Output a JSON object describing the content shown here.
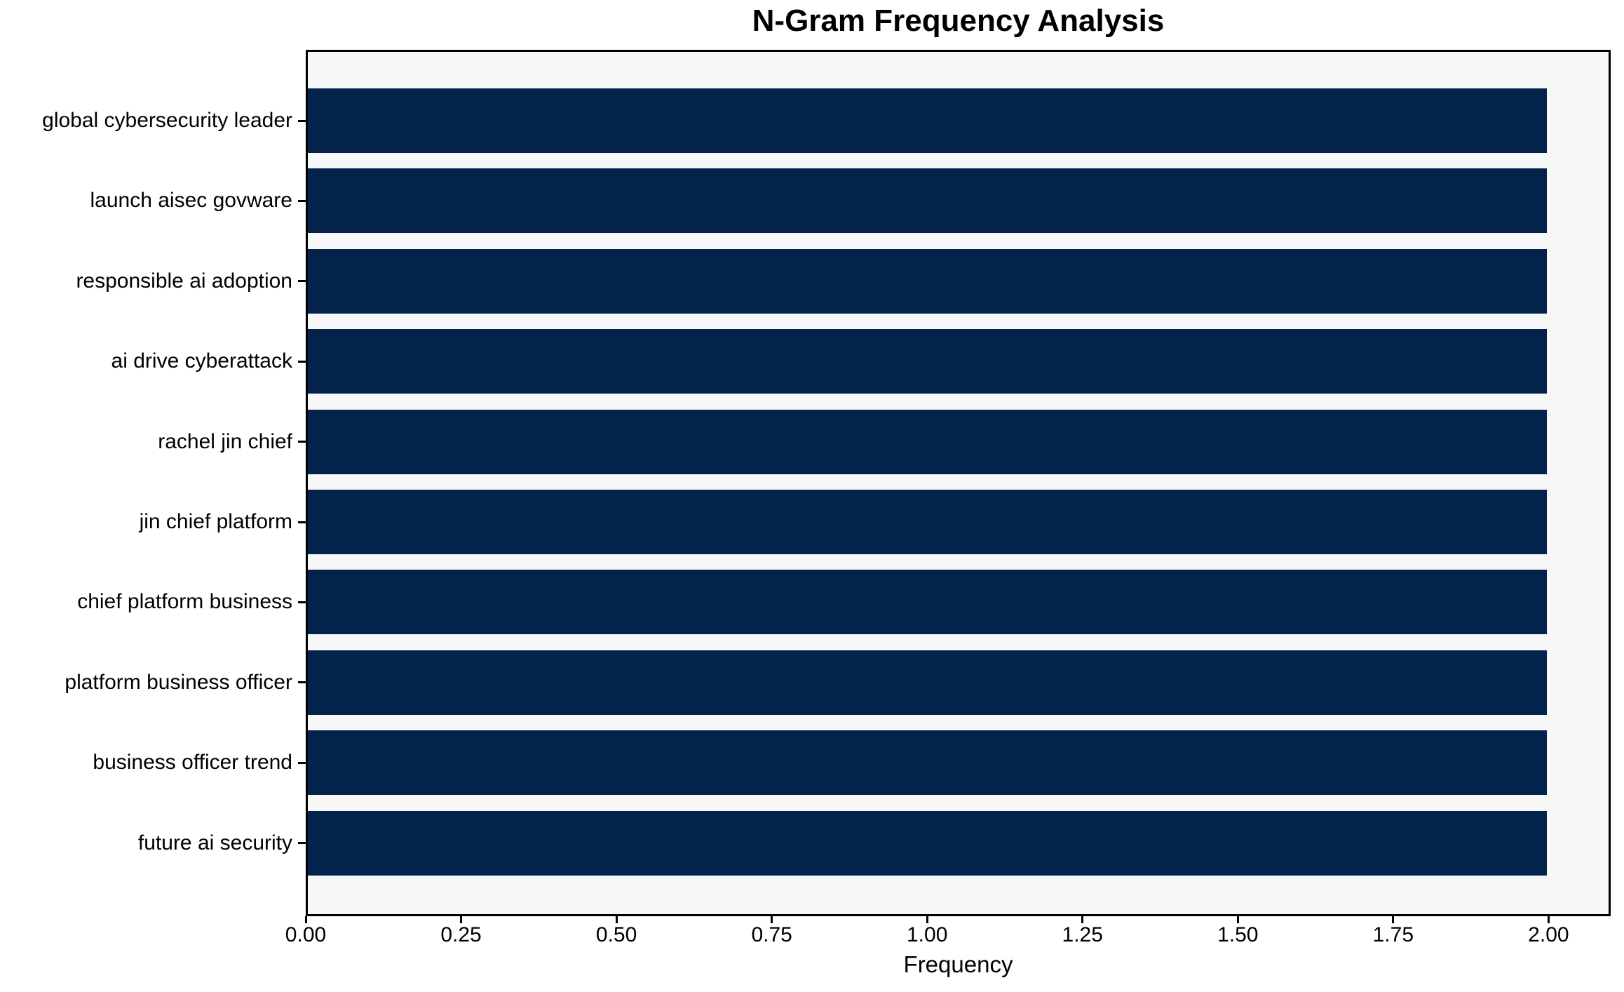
{
  "chart_data": {
    "type": "bar",
    "orientation": "horizontal",
    "title": "N-Gram Frequency Analysis",
    "xlabel": "Frequency",
    "ylabel": "",
    "categories": [
      "global cybersecurity leader",
      "launch aisec govware",
      "responsible ai adoption",
      "ai drive cyberattack",
      "rachel jin chief",
      "jin chief platform",
      "chief platform business",
      "platform business officer",
      "business officer trend",
      "future ai security"
    ],
    "values": [
      2,
      2,
      2,
      2,
      2,
      2,
      2,
      2,
      2,
      2
    ],
    "xlim": [
      0,
      2.1
    ],
    "xticks": [
      0,
      0.25,
      0.5,
      0.75,
      1,
      1.25,
      1.5,
      1.75,
      2
    ],
    "xtick_labels": [
      "0.00",
      "0.25",
      "0.50",
      "0.75",
      "1.00",
      "1.25",
      "1.50",
      "1.75",
      "2.00"
    ],
    "grid": false,
    "legend": null,
    "colors": {
      "bar": "#03234d",
      "plot_background": "#f7f7f7",
      "figure_background": "#ffffff",
      "axis": "#000000",
      "text": "#000000"
    }
  }
}
